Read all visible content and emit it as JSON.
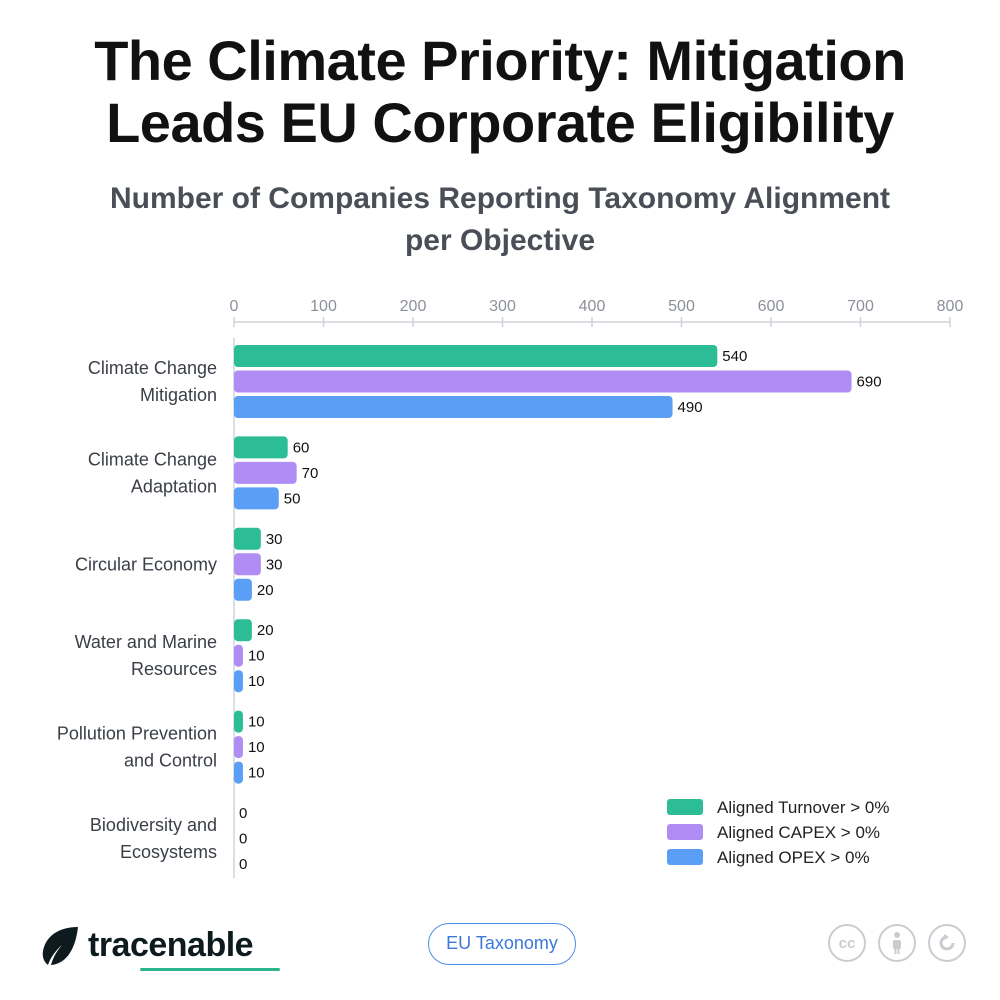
{
  "header": {
    "title_line1": "The Climate Priority: Mitigation",
    "title_line2": "Leads EU Corporate Eligibility",
    "subtitle_line1": "Number of Companies Reporting Taxonomy Alignment",
    "subtitle_line2": "per Objective"
  },
  "chart_data": {
    "type": "bar",
    "orientation": "horizontal",
    "title": "The Climate Priority: Mitigation Leads EU Corporate Eligibility",
    "subtitle": "Number of Companies Reporting Taxonomy Alignment per Objective",
    "xlabel": "",
    "ylabel": "",
    "xlim": [
      0,
      800
    ],
    "x_ticks": [
      0,
      100,
      200,
      300,
      400,
      500,
      600,
      700,
      800
    ],
    "x_axis_position": "top",
    "grid": false,
    "legend_position": "bottom-right",
    "categories": [
      [
        "Climate Change",
        "Mitigation"
      ],
      [
        "Climate Change",
        "Adaptation"
      ],
      [
        "Circular Economy"
      ],
      [
        "Water and Marine",
        "Resources"
      ],
      [
        "Pollution Prevention",
        "and Control"
      ],
      [
        "Biodiversity and",
        "Ecosystems"
      ]
    ],
    "series": [
      {
        "name": "Aligned Turnover > 0%",
        "color": "#2dbd96",
        "values": [
          540,
          60,
          30,
          20,
          10,
          0
        ]
      },
      {
        "name": "Aligned CAPEX > 0%",
        "color": "#b08cf5",
        "values": [
          690,
          70,
          30,
          10,
          10,
          0
        ]
      },
      {
        "name": "Aligned OPEX > 0%",
        "color": "#5a9ef5",
        "values": [
          490,
          50,
          20,
          10,
          10,
          0
        ]
      }
    ]
  },
  "footer": {
    "brand": "tracenable",
    "tag": "EU Taxonomy",
    "license_cc": "cc"
  },
  "icons": [
    "tracenable-leaf-icon",
    "cc-icon",
    "attribution-icon",
    "share-alike-icon"
  ]
}
